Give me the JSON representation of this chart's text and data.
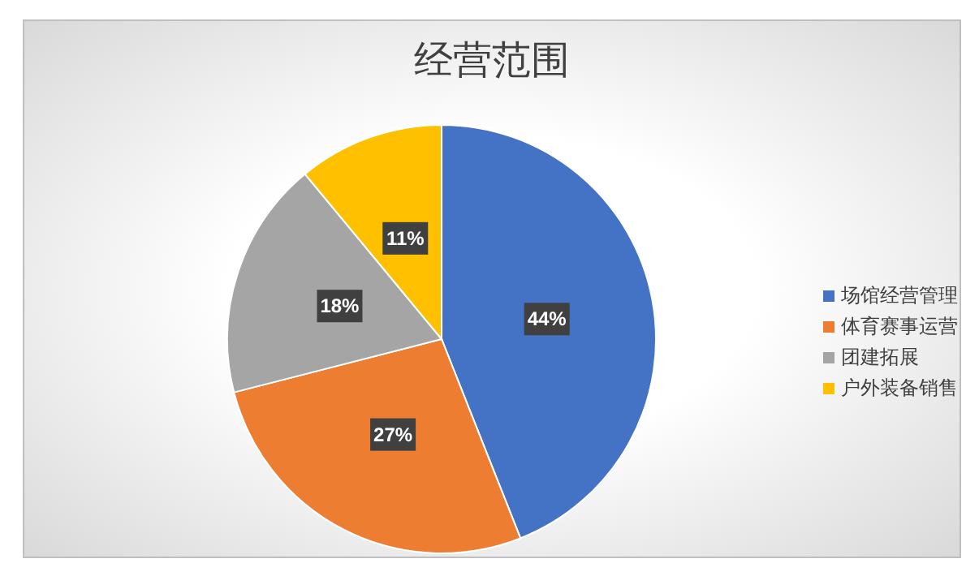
{
  "chart_data": {
    "type": "pie",
    "title": "经营范围",
    "categories": [
      "场馆经营管理",
      "体育赛事运营",
      "团建拓展",
      "户外装备销售"
    ],
    "values": [
      44,
      27,
      18,
      11
    ],
    "colors": [
      "#4472c4",
      "#ed7d31",
      "#a5a5a5",
      "#ffc000"
    ],
    "value_labels": [
      "44%",
      "27%",
      "18%",
      "11%"
    ],
    "legend": "right"
  }
}
